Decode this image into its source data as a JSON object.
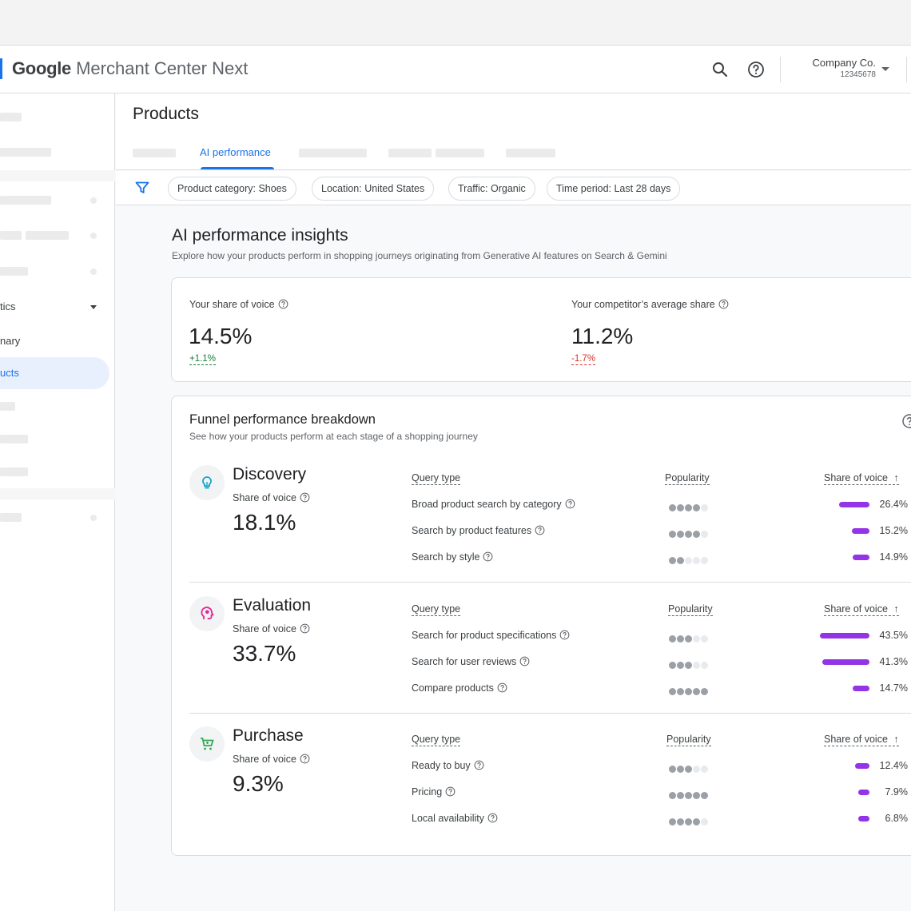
{
  "header": {
    "brand": "Google",
    "product": "Merchant Center Next",
    "account_name": "Company Co.",
    "account_id": "12345678",
    "icons": [
      "search-icon",
      "help-icon",
      "chevron-down-icon"
    ]
  },
  "sidebar": {
    "analytics_label": "tics",
    "summary_label": "nary",
    "products_label": "ucts"
  },
  "page": {
    "title": "Products",
    "active_tab": "AI performance"
  },
  "filters": [
    "Product category: Shoes",
    "Location: United States",
    "Traffic: Organic",
    "Time period: Last 28 days"
  ],
  "insights": {
    "title": "AI performance insights",
    "subtitle": "Explore how your products perform in shopping journeys originating from Generative AI features on Search & Gemini"
  },
  "share": {
    "yours_label": "Your share of voice",
    "yours_value": "14.5%",
    "yours_delta": "+1.1%",
    "competitor_label": "Your competitor’s average share",
    "competitor_value": "11.2%",
    "competitor_delta": "-1.7%"
  },
  "funnel": {
    "title": "Funnel performance breakdown",
    "subtitle": "See how your products perform at each stage of a shopping journey",
    "col_query": "Query type",
    "col_popularity": "Popularity",
    "col_sov": "Share of voice",
    "sov_label": "Share of voice",
    "stages": [
      {
        "name": "Discovery",
        "sov": "18.1%",
        "icon": "lightbulb-icon",
        "rows": [
          {
            "query": "Broad product search by category",
            "popularity": 4,
            "sov": 26.4,
            "sov_label": "26.4%"
          },
          {
            "query": "Search by product features",
            "popularity": 4,
            "sov": 15.2,
            "sov_label": "15.2%"
          },
          {
            "query": "Search by style",
            "popularity": 2,
            "sov": 14.9,
            "sov_label": "14.9%"
          }
        ]
      },
      {
        "name": "Evaluation",
        "sov": "33.7%",
        "icon": "head-thinking-icon",
        "rows": [
          {
            "query": "Search for product specifications",
            "popularity": 3,
            "sov": 43.5,
            "sov_label": "43.5%"
          },
          {
            "query": "Search for user reviews",
            "popularity": 3,
            "sov": 41.3,
            "sov_label": "41.3%"
          },
          {
            "query": "Compare products",
            "popularity": 5,
            "sov": 14.7,
            "sov_label": "14.7%"
          }
        ]
      },
      {
        "name": "Purchase",
        "sov": "9.3%",
        "icon": "cart-icon",
        "rows": [
          {
            "query": "Ready to buy",
            "popularity": 3,
            "sov": 12.4,
            "sov_label": "12.4%"
          },
          {
            "query": "Pricing",
            "popularity": 5,
            "sov": 7.9,
            "sov_label": "7.9%"
          },
          {
            "query": "Local availability",
            "popularity": 4,
            "sov": 6.8,
            "sov_label": "6.8%"
          }
        ]
      }
    ]
  },
  "colors": {
    "accent": "#1a73e8",
    "bar": "#9334e6",
    "positive": "#188038",
    "negative": "#d93025",
    "discovery_icon": "#12a4c9",
    "evaluation_icon": "#e52592",
    "purchase_icon": "#34a853"
  }
}
